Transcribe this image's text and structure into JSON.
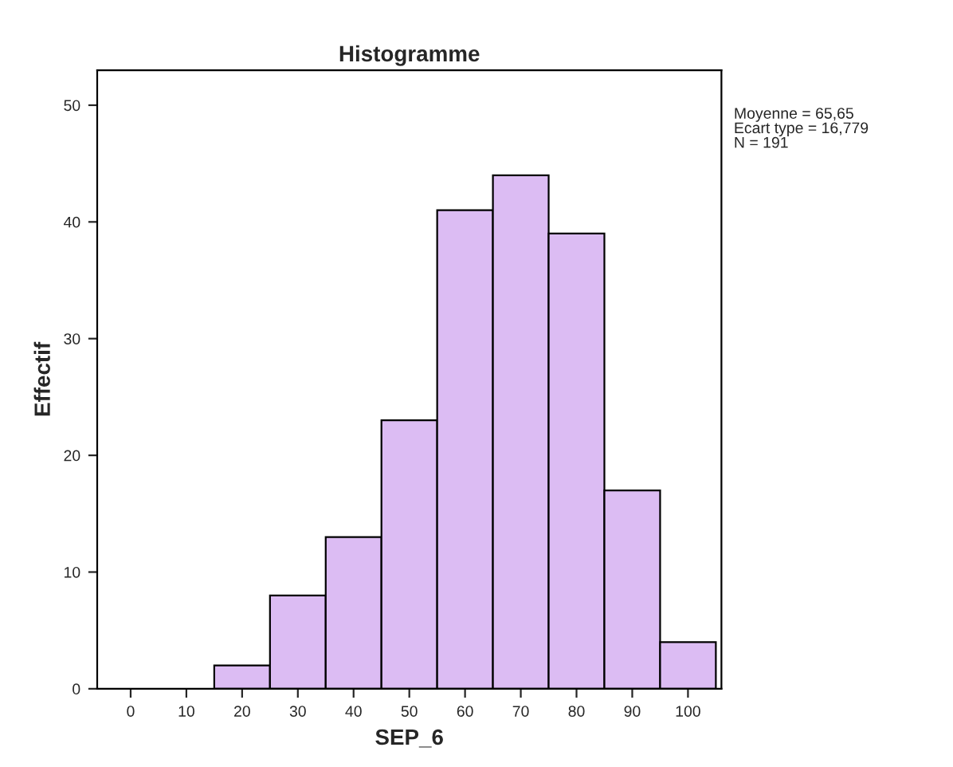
{
  "chart_data": {
    "type": "histogram",
    "title": "Histogramme",
    "xlabel": "SEP_6",
    "ylabel": "Effectif",
    "bins": [
      15,
      25,
      35,
      45,
      55,
      65,
      75,
      85,
      95,
      105
    ],
    "values": [
      2,
      8,
      13,
      23,
      41,
      44,
      39,
      17,
      4
    ],
    "color": "#dcbcf3",
    "xlim": [
      -6,
      106
    ],
    "xticks": [
      0,
      10,
      20,
      30,
      40,
      50,
      60,
      70,
      80,
      90,
      100
    ],
    "ylim": [
      0,
      53
    ],
    "yticks": [
      0,
      10,
      20,
      30,
      40,
      50
    ],
    "grid": false,
    "annotations": [
      "Moyenne = 65,65",
      "Ecart type = 16,779",
      "N = 191"
    ]
  }
}
